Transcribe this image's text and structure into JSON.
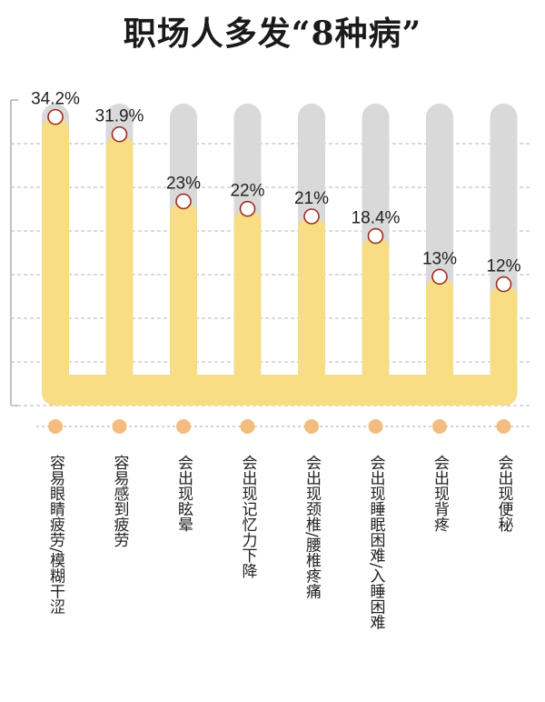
{
  "title": "职场人多发“8种病”",
  "colors": {
    "bar": "#f8dd85",
    "track": "#d9d9d9",
    "marker_fill": "#ffffff",
    "marker_stroke": "#9b2e25",
    "dot": "#f3bd7f",
    "axis": "#999999"
  },
  "chart_data": {
    "type": "bar",
    "title": "职场人多发“8种病”",
    "xlabel": "",
    "ylabel": "",
    "ylim": [
      0,
      35
    ],
    "grid": true,
    "categories": [
      "容易眼睛疲劳/模糊干涩",
      "容易感到疲劳",
      "会出现眩晕",
      "会出现记忆力下降",
      "会出现颈椎/腰椎疼痛",
      "会出现睡眠困难/入睡困难",
      "会出现背疼",
      "会出现便秘"
    ],
    "values": [
      34.2,
      31.9,
      23,
      22,
      21,
      18.4,
      13,
      12
    ],
    "value_labels": [
      "34.2%",
      "31.9%",
      "23%",
      "22%",
      "21%",
      "18.4%",
      "13%",
      "12%"
    ]
  }
}
